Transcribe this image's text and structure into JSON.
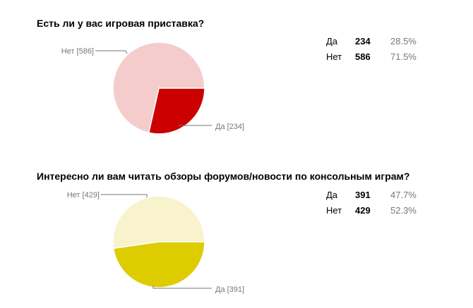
{
  "chart_data": [
    {
      "type": "pie",
      "title": "Есть ли у вас игровая приставка?",
      "slices": [
        {
          "label": "Да",
          "value": 234,
          "percent": "28.5%",
          "color": "#cc0000",
          "callout": "Да [234]"
        },
        {
          "label": "Нет",
          "value": 586,
          "percent": "71.5%",
          "color": "#f4cccc",
          "callout": "Нет [586]"
        }
      ]
    },
    {
      "type": "pie",
      "title": "Интересно ли вам читать обзоры форумов/новости по консольным играм?",
      "slices": [
        {
          "label": "Да",
          "value": 391,
          "percent": "47.7%",
          "color": "#ddcc00",
          "callout": "Да [391]"
        },
        {
          "label": "Нет",
          "value": 429,
          "percent": "52.3%",
          "color": "#f8f3cc",
          "callout": "Нет [429]"
        }
      ]
    }
  ]
}
